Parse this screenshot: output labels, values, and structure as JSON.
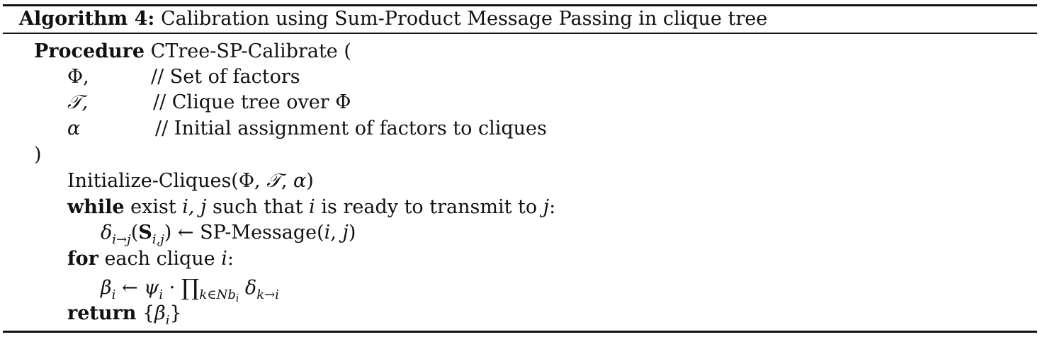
{
  "caption": {
    "label": "Algorithm 4:",
    "title": "Calibration using Sum-Product Message Passing in clique tree"
  },
  "procedure": {
    "keyword": "Procedure",
    "name": "CTree-SP-Calibrate (",
    "params": [
      {
        "name": "Φ,",
        "comment": "// Set of factors"
      },
      {
        "name": "𝒯,",
        "comment": "// Clique tree over Φ"
      },
      {
        "name": "α",
        "comment": "// Initial assignment of factors to cliques"
      }
    ],
    "close": ")"
  },
  "body": {
    "init": {
      "fn": "Initialize-Cliques(",
      "args_a": "Φ, ",
      "args_b": "𝒯",
      "args_c": ", ",
      "args_d": "α",
      "end": ")"
    },
    "while": {
      "keyword": "while",
      "t1": " exist ",
      "v1": "i, j",
      "t2": " such that ",
      "v2": "i",
      "t3": " is ready to transmit to ",
      "v3": "j",
      "t4": ":"
    },
    "assign": {
      "delta": "δ",
      "sub": "i→j",
      "open": "(",
      "S": "S",
      "Ssub": "i,j",
      "close": ") ← SP-Message(",
      "arg1": "i",
      "comma": ", ",
      "arg2": "j",
      "end": ")"
    },
    "for": {
      "keyword": "for",
      "t1": " each clique ",
      "v1": "i",
      "t2": ":"
    },
    "beta": {
      "beta": "β",
      "bsub": "i",
      "arrow": " ← ",
      "psi": "ψ",
      "psub": "i",
      "dot": " · ",
      "prod": "∏",
      "prodsub": "k∈Nb",
      "prodsub2": "i",
      "delta": " δ",
      "dsub": "k→i"
    },
    "return": {
      "keyword": "return",
      "open": " {",
      "beta": "β",
      "bsub": "i",
      "close": "}"
    }
  }
}
